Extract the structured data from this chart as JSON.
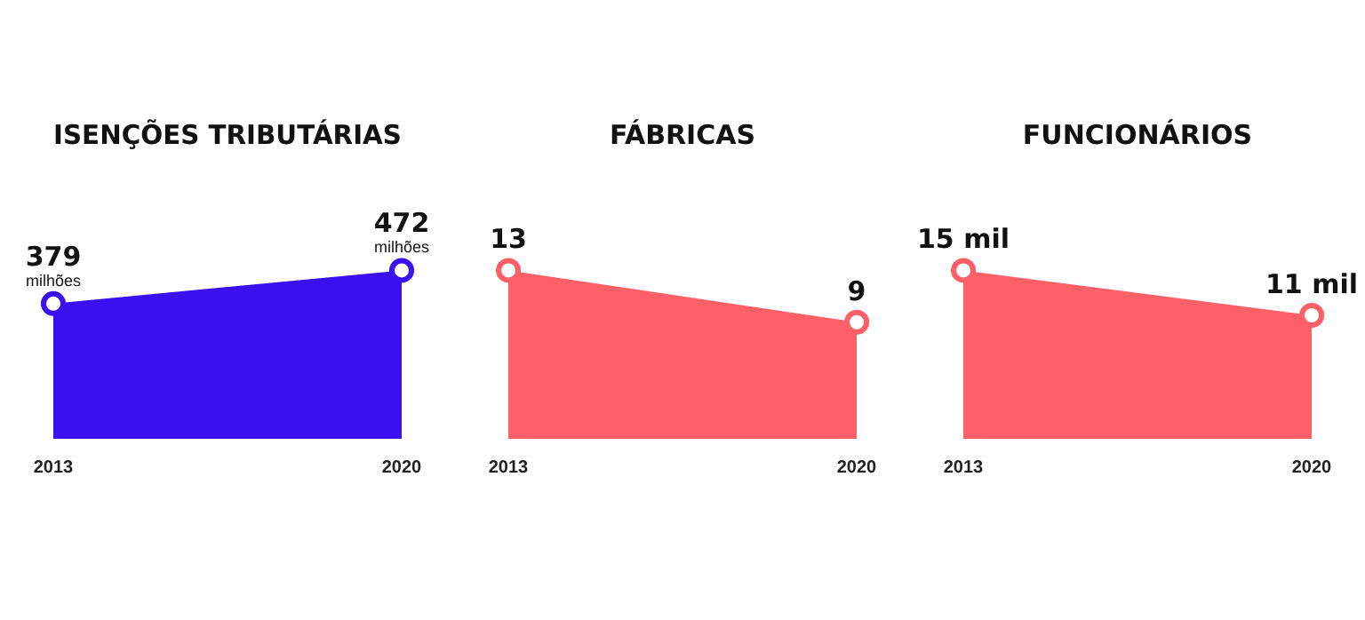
{
  "chart_data": [
    {
      "type": "area",
      "title": "ISENÇÕES TRIBUTÁRIAS",
      "categories": [
        "2013",
        "2020"
      ],
      "series": [
        {
          "color": "#3a10f0",
          "values": [
            379,
            472
          ],
          "value_labels": [
            "379",
            "472"
          ]
        }
      ],
      "annotations": [
        {
          "text": "milhões",
          "x": "2013",
          "y": 379
        },
        {
          "text": "milhões",
          "x": "2020",
          "y": 472
        }
      ],
      "marker": "circle",
      "grid": false,
      "legend": false
    },
    {
      "type": "area",
      "title": "FÁBRICAS",
      "categories": [
        "2013",
        "2020"
      ],
      "series": [
        {
          "color": "#ff6068",
          "values": [
            13,
            9
          ],
          "value_labels": [
            "13",
            "9"
          ]
        }
      ],
      "marker": "circle",
      "grid": false,
      "legend": false
    },
    {
      "type": "area",
      "title": "FUNCIONÁRIOS",
      "categories": [
        "2013",
        "2020"
      ],
      "series": [
        {
          "color": "#ff6068",
          "values": [
            15,
            11
          ],
          "value_labels": [
            "15 mil",
            "11 mil"
          ]
        }
      ],
      "marker": "circle",
      "grid": false,
      "legend": false
    }
  ]
}
